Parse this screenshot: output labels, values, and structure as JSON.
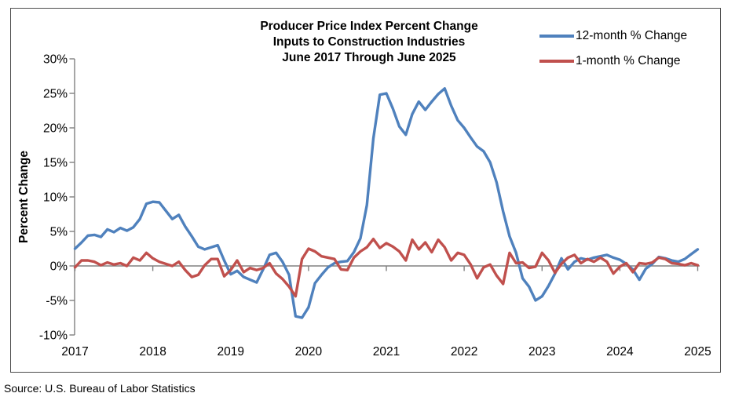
{
  "chart": {
    "title_lines": [
      "Producer Price Index Percent Change",
      "Inputs to Construction Industries",
      "June 2017 Through June 2025"
    ],
    "y_axis_title": "Percent Change",
    "source_note": "Source: U.S. Bureau of Labor Statistics",
    "border_color": "#4d4d4d",
    "axis_color": "#808080"
  },
  "chart_data": {
    "type": "line",
    "title": "Producer Price Index Percent Change, Inputs to Construction Industries, June 2017 Through June 2025",
    "x_unit": "month",
    "x_start_label": "June 2017",
    "x_end_label": "June 2025",
    "x_tick_labels": [
      "2017",
      "2018",
      "2019",
      "2020",
      "2021",
      "2022",
      "2023",
      "2024",
      "2025"
    ],
    "months_between_x_ticks": 12,
    "ylabel": "Percent Change",
    "ylim": [
      -10,
      30
    ],
    "y_ticks": [
      30,
      25,
      20,
      15,
      10,
      5,
      0,
      -5,
      -10
    ],
    "y_tick_suffix": "%",
    "grid": false,
    "legend_position": "top-right",
    "series": [
      {
        "name": "12-month % Change",
        "color": "#4F81BD",
        "values": [
          2.5,
          3.4,
          4.4,
          4.5,
          4.2,
          5.3,
          4.9,
          5.5,
          5.1,
          5.6,
          6.8,
          9.0,
          9.3,
          9.2,
          8.0,
          6.8,
          7.4,
          5.7,
          4.3,
          2.8,
          2.4,
          2.7,
          3.0,
          0.8,
          -1.2,
          -0.7,
          -1.6,
          -2.0,
          -2.4,
          -0.5,
          1.6,
          1.9,
          0.6,
          -1.3,
          -7.3,
          -7.5,
          -6.0,
          -2.5,
          -1.3,
          -0.2,
          0.4,
          0.6,
          0.7,
          2.0,
          4.0,
          8.8,
          18.5,
          24.8,
          25.0,
          22.8,
          20.2,
          19.0,
          22.0,
          23.8,
          22.6,
          23.8,
          24.9,
          25.7,
          23.2,
          21.1,
          20.0,
          18.6,
          17.3,
          16.6,
          15.0,
          12.1,
          7.9,
          4.3,
          1.9,
          -1.8,
          -3.0,
          -5.0,
          -4.4,
          -2.9,
          -1.1,
          1.1,
          -0.5,
          0.6,
          1.1,
          0.9,
          1.2,
          1.4,
          1.6,
          1.2,
          0.9,
          0.3,
          -0.5,
          -2.0,
          -0.4,
          0.3,
          1.3,
          1.1,
          0.8,
          0.6,
          1.0,
          1.7,
          2.4
        ]
      },
      {
        "name": "1-month % Change",
        "color": "#C0504D",
        "values": [
          -0.2,
          0.8,
          0.8,
          0.6,
          0.1,
          0.5,
          0.2,
          0.4,
          0.0,
          1.2,
          0.8,
          1.9,
          1.1,
          0.6,
          0.3,
          0.0,
          0.6,
          -0.6,
          -1.6,
          -1.3,
          0.1,
          1.0,
          1.0,
          -1.5,
          -0.6,
          0.8,
          -0.9,
          -0.3,
          -0.6,
          -0.3,
          0.4,
          -1.1,
          -1.9,
          -3.0,
          -4.4,
          1.0,
          2.5,
          2.1,
          1.4,
          1.2,
          1.0,
          -0.5,
          -0.6,
          1.2,
          2.1,
          2.7,
          3.9,
          2.6,
          3.3,
          2.8,
          2.1,
          0.8,
          3.8,
          2.4,
          3.4,
          2.0,
          3.8,
          2.7,
          0.8,
          1.9,
          1.6,
          0.2,
          -1.8,
          -0.2,
          0.2,
          -1.4,
          -2.6,
          1.9,
          0.4,
          0.5,
          -0.3,
          -0.1,
          1.9,
          0.8,
          -1.0,
          0.3,
          1.2,
          1.6,
          0.4,
          1.0,
          0.6,
          1.2,
          0.6,
          -1.1,
          -0.1,
          0.4,
          -0.9,
          0.4,
          0.3,
          0.5,
          1.2,
          1.0,
          0.4,
          0.3,
          0.1,
          0.4,
          0.1
        ]
      }
    ]
  }
}
